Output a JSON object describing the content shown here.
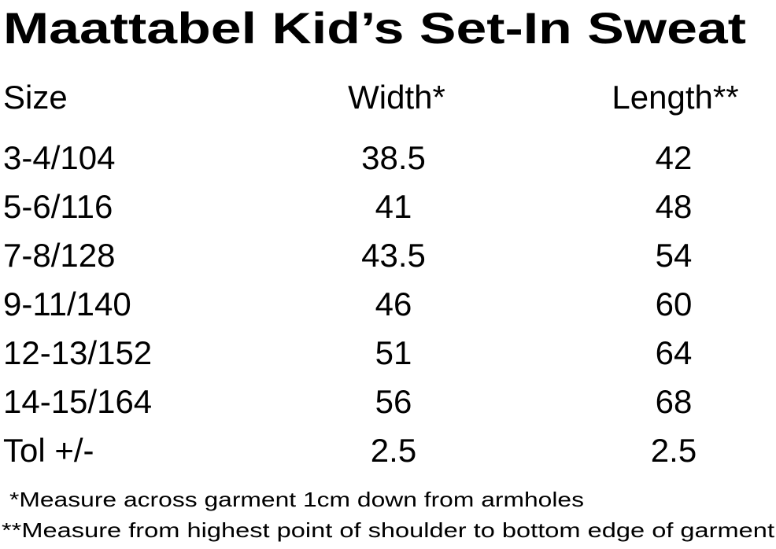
{
  "title": "Maattabel Kid’s Set-In Sweat",
  "table": {
    "header": [
      "Size",
      "Width*",
      "Length**"
    ],
    "rows": [
      [
        "3-4/104",
        "38.5",
        "42"
      ],
      [
        "5-6/116",
        "41",
        "48"
      ],
      [
        "7-8/128",
        "43.5",
        "54"
      ],
      [
        "9-11/140",
        "46",
        "60"
      ],
      [
        "12-13/152",
        "51",
        "64"
      ],
      [
        "14-15/164",
        "56",
        "68"
      ],
      [
        "Tol +/-",
        "2.5",
        "2.5"
      ]
    ]
  },
  "notes": [
    "*Measure across garment 1cm down from armholes",
    "**Measure from highest point of shoulder to bottom edge of garment"
  ]
}
